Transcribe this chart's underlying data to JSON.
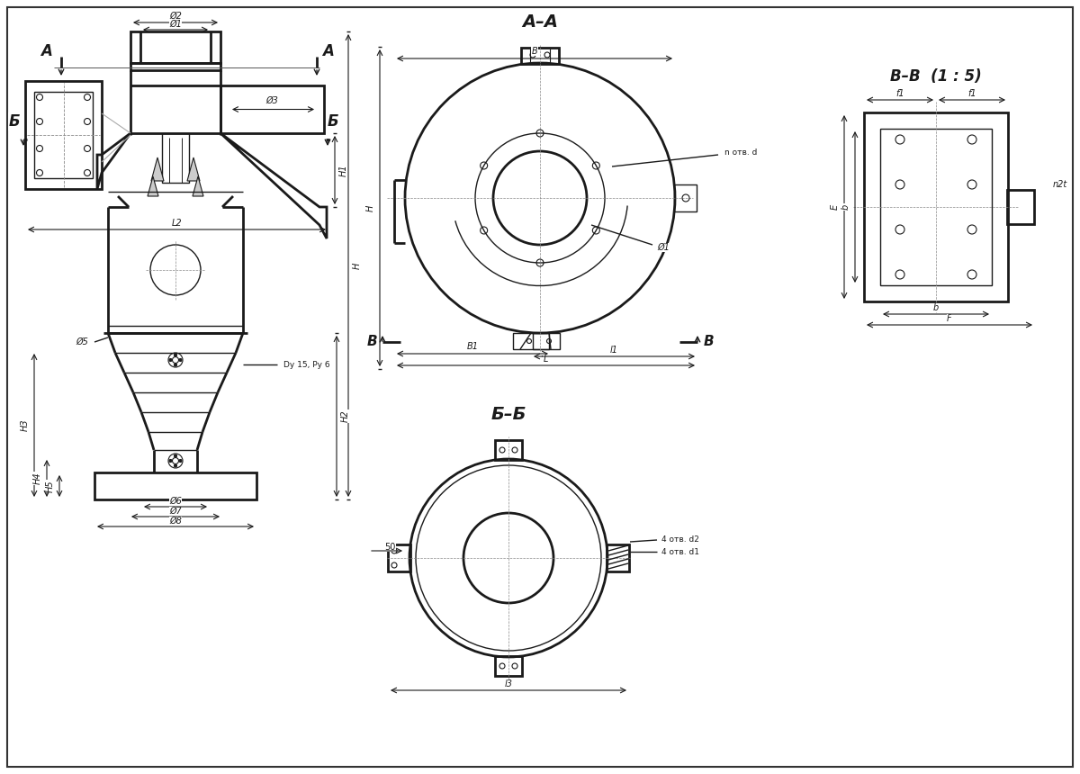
{
  "bg_color": "#ffffff",
  "lc": "#1a1a1a",
  "lw": 1.0,
  "lw2": 2.0,
  "fs": 7.5,
  "fs_sec": 12,
  "labels": {
    "AA": "А–А",
    "BB": "Б–Б",
    "VV": "В–В  (1 : 5)",
    "A": "А",
    "B": "Б",
    "V": "В",
    "D1": "Ø1",
    "D2": "Ø2",
    "D3": "Ø3",
    "D5": "Ø5",
    "D6": "Ø6",
    "D7": "Ø7",
    "D8": "Ø8",
    "H": "H",
    "H1": "H1",
    "H2": "H2",
    "H3": "Н3",
    "H4": "Н4",
    "H5": "Н5",
    "L": "L",
    "L1": "l1",
    "L2": "L2",
    "L3": "l3",
    "Bw": "B",
    "B1": "B1",
    "E": "E",
    "b": "b",
    "F": "F",
    "f1": "f1",
    "n_otv_d": "n отв. d",
    "otv_d2": "4 отв. d2",
    "otv_d1": "4 отв. d1",
    "n2t": "n2t",
    "50": "50",
    "Dy15": "Dy 15, Ру 6"
  }
}
